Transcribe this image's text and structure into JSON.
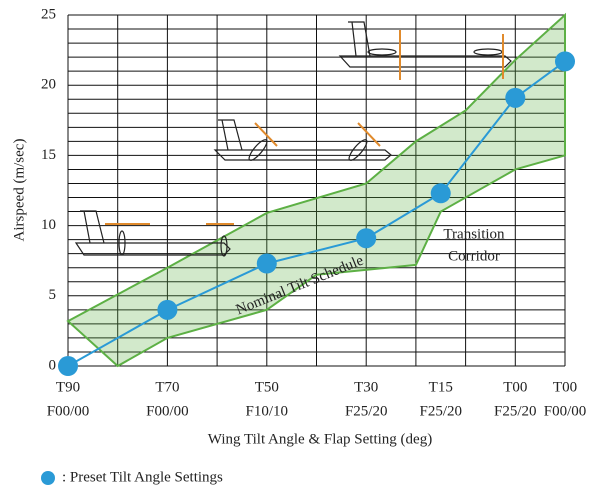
{
  "chart_data": {
    "type": "line",
    "xlabel": "Wing Tilt Angle & Flap Setting (deg)",
    "ylabel": "Airspeed (m/sec)",
    "xlim": [
      0,
      10
    ],
    "ylim": [
      0,
      25
    ],
    "xticks": [
      {
        "value": 0,
        "label": "T90"
      },
      {
        "value": 2,
        "label": "T70"
      },
      {
        "value": 4,
        "label": "T50"
      },
      {
        "value": 6,
        "label": "T30"
      },
      {
        "value": 7.5,
        "label": "T15"
      },
      {
        "value": 9,
        "label": "T00"
      },
      {
        "value": 10,
        "label": "T00"
      }
    ],
    "xticks_flap": [
      "F00/00",
      "F00/00",
      "F10/10",
      "F25/20",
      "F25/20",
      "F25/20",
      "F00/00"
    ],
    "yticks": [
      0,
      5,
      10,
      15,
      20,
      25
    ],
    "xgrid": [
      0,
      1,
      2,
      3,
      4,
      5,
      6,
      7,
      8,
      9,
      10
    ],
    "ygrid": [
      0,
      1,
      2,
      3,
      4,
      5,
      6,
      7,
      8,
      9,
      10,
      11,
      12,
      13,
      14,
      15,
      16,
      17,
      18,
      19,
      20,
      21,
      22,
      23,
      24,
      25
    ],
    "corridor": {
      "color": "#5db045",
      "upper_x": [
        0,
        2,
        4,
        6,
        7,
        8,
        9,
        10
      ],
      "upper": [
        3.2,
        7,
        10.9,
        13,
        16,
        18.2,
        21.8,
        25
      ],
      "lower_x": [
        1,
        2,
        4,
        5,
        7,
        7.5,
        9,
        10
      ],
      "lower": [
        0,
        2,
        4,
        6.5,
        7.2,
        11,
        14,
        15
      ]
    },
    "series": [
      {
        "name": ": Preset Tilt Angle Settings",
        "color": "#2a9ad6",
        "x": [
          0,
          2,
          4,
          6,
          7.5,
          9,
          10
        ],
        "values": [
          0,
          4,
          7.3,
          9.1,
          12.3,
          19.1,
          21.7
        ]
      }
    ],
    "annotations": [
      "Transition",
      "Corridor",
      "Nominal Tilt Schedule"
    ]
  }
}
